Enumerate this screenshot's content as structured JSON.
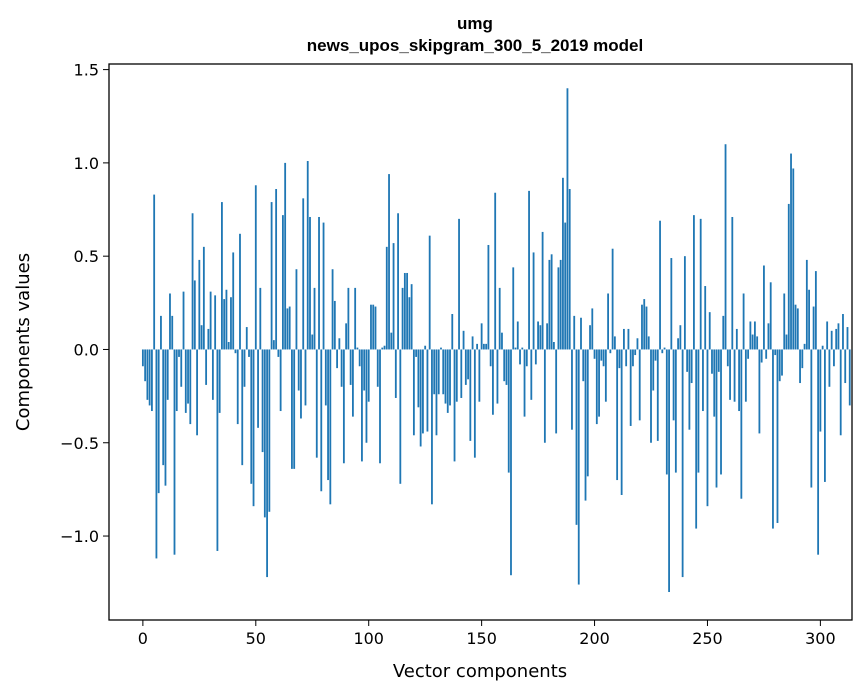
{
  "chart_data": {
    "type": "bar",
    "title": "umg",
    "subtitle": "news_upos_skipgram_300_5_2019 model",
    "xlabel": "Vector components",
    "ylabel": "Components values",
    "xlim": [
      -15,
      314
    ],
    "ylim": [
      -1.45,
      1.53
    ],
    "x_ticks": [
      0,
      50,
      100,
      150,
      200,
      250,
      300
    ],
    "x_tick_labels": [
      "0",
      "50",
      "100",
      "150",
      "200",
      "250",
      "300"
    ],
    "y_ticks": [
      -1.0,
      -0.5,
      0.0,
      0.5,
      1.0,
      1.5
    ],
    "y_tick_labels": [
      "−1.0",
      "−0.5",
      "0.0",
      "0.5",
      "1.0",
      "1.5"
    ],
    "grid": false,
    "bar_color": "#1f77b4",
    "values": [
      -0.09,
      -0.17,
      -0.27,
      -0.3,
      -0.33,
      0.83,
      -1.12,
      -0.77,
      0.18,
      -0.62,
      -0.73,
      -0.27,
      0.3,
      0.18,
      -1.1,
      -0.33,
      -0.04,
      -0.2,
      0.31,
      -0.34,
      -0.29,
      -0.4,
      0.73,
      0.37,
      -0.46,
      0.48,
      0.13,
      0.55,
      -0.19,
      0.11,
      0.31,
      -0.27,
      0.29,
      -1.08,
      -0.34,
      0.79,
      0.27,
      0.32,
      0.04,
      0.28,
      0.52,
      -0.02,
      -0.4,
      0.62,
      -0.62,
      -0.2,
      0.12,
      -0.04,
      -0.72,
      -0.84,
      0.88,
      -0.42,
      0.33,
      -0.55,
      -0.9,
      -1.22,
      -0.87,
      0.79,
      0.05,
      0.86,
      -0.04,
      -0.33,
      0.72,
      1.0,
      0.22,
      0.23,
      -0.64,
      -0.64,
      0.43,
      -0.22,
      -0.37,
      0.81,
      -0.3,
      1.01,
      0.71,
      0.08,
      0.33,
      -0.58,
      0.71,
      -0.76,
      0.68,
      -0.3,
      -0.7,
      -0.83,
      0.43,
      0.26,
      -0.1,
      0.06,
      -0.2,
      -0.61,
      0.14,
      0.33,
      -0.19,
      -0.36,
      0.33,
      0.01,
      -0.09,
      -0.6,
      -0.22,
      -0.5,
      -0.28,
      0.24,
      0.24,
      0.23,
      -0.2,
      -0.61,
      0.01,
      0.02,
      0.55,
      0.94,
      0.09,
      0.57,
      -0.26,
      0.73,
      -0.72,
      0.33,
      0.41,
      0.41,
      0.28,
      0.35,
      -0.46,
      -0.04,
      -0.31,
      -0.52,
      -0.45,
      0.02,
      -0.44,
      0.61,
      -0.83,
      -0.24,
      -0.46,
      -0.24,
      0.01,
      -0.24,
      -0.29,
      -0.34,
      -0.3,
      0.19,
      -0.6,
      -0.28,
      0.7,
      -0.26,
      0.1,
      -0.19,
      -0.16,
      -0.49,
      0.07,
      -0.58,
      0.03,
      -0.28,
      0.14,
      0.03,
      0.03,
      0.56,
      -0.09,
      -0.35,
      0.84,
      -0.29,
      0.33,
      0.09,
      -0.17,
      -0.19,
      -0.66,
      -1.21,
      0.44,
      0.01,
      0.15,
      -0.08,
      0.01,
      -0.36,
      -0.09,
      0.85,
      -0.27,
      0.52,
      -0.08,
      0.15,
      0.13,
      0.63,
      -0.5,
      0.14,
      0.48,
      0.51,
      0.04,
      -0.45,
      0.44,
      0.48,
      0.92,
      0.68,
      1.4,
      0.86,
      -0.43,
      0.18,
      -0.94,
      -1.26,
      0.17,
      -0.17,
      -0.81,
      -0.68,
      0.13,
      0.22,
      -0.05,
      -0.4,
      -0.36,
      -0.06,
      -0.09,
      -0.28,
      0.3,
      -0.02,
      0.54,
      0.07,
      -0.7,
      -0.1,
      -0.78,
      0.11,
      -0.09,
      0.11,
      -0.41,
      -0.09,
      -0.03,
      0.06,
      -0.38,
      0.24,
      0.27,
      0.23,
      0.07,
      -0.5,
      -0.22,
      -0.06,
      -0.49,
      0.69,
      -0.02,
      0.01,
      -0.67,
      -1.3,
      0.49,
      -0.38,
      -0.66,
      0.06,
      0.13,
      -1.22,
      0.5,
      -0.12,
      -0.43,
      -0.18,
      0.72,
      -0.96,
      -0.66,
      0.7,
      -0.33,
      0.34,
      -0.84,
      0.2,
      -0.13,
      -0.36,
      -0.74,
      -0.12,
      -0.67,
      0.18,
      1.1,
      -0.09,
      -0.27,
      0.71,
      -0.28,
      0.11,
      -0.33,
      -0.8,
      0.3,
      -0.28,
      -0.05,
      0.15,
      0.08,
      0.15,
      0.07,
      -0.45,
      -0.07,
      0.45,
      -0.05,
      0.14,
      0.36,
      -0.96,
      -0.03,
      -0.93,
      -0.17,
      -0.14,
      0.3,
      0.08,
      0.78,
      1.05,
      0.97,
      0.24,
      0.22,
      -0.18,
      -0.1,
      0.03,
      0.48,
      0.32,
      -0.74,
      0.23,
      0.42,
      -1.1,
      -0.44,
      0.02,
      -0.71,
      0.15,
      -0.2,
      0.1,
      -0.09,
      0.11,
      0.14,
      -0.46,
      0.19,
      -0.18,
      0.12,
      -0.3
    ]
  }
}
